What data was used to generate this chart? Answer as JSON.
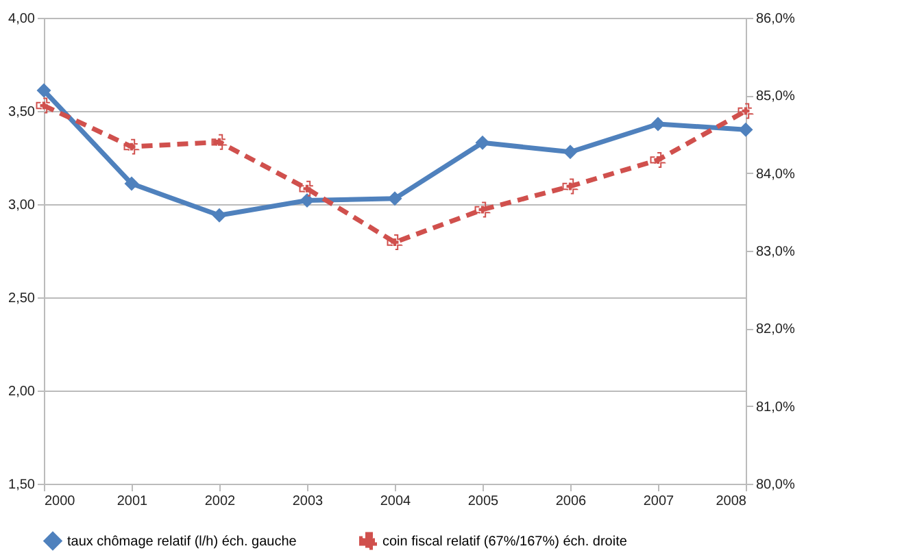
{
  "chart_data": {
    "type": "line",
    "x": [
      2000,
      2001,
      2002,
      2003,
      2004,
      2005,
      2006,
      2007,
      2008
    ],
    "xlim": [
      2000,
      2008
    ],
    "xticks": [
      2000,
      2001,
      2002,
      2003,
      2004,
      2005,
      2006,
      2007,
      2008
    ],
    "ylim": [
      1.5,
      4
    ],
    "yticks": [
      {
        "value": 1.5,
        "label": "1,50"
      },
      {
        "value": 2,
        "label": "2,00"
      },
      {
        "value": 2.5,
        "label": "2,50"
      },
      {
        "value": 3,
        "label": "3,00"
      },
      {
        "value": 3.5,
        "label": "3,50"
      },
      {
        "value": 4,
        "label": "4,00"
      }
    ],
    "y2lim": [
      80,
      86
    ],
    "y2ticks": [
      {
        "value": 80,
        "label": "80,0%"
      },
      {
        "value": 81,
        "label": "81,0%"
      },
      {
        "value": 82,
        "label": "82,0%"
      },
      {
        "value": 83,
        "label": "83,0%"
      },
      {
        "value": 84,
        "label": "84,0%"
      },
      {
        "value": 85,
        "label": "85,0%"
      },
      {
        "value": 86,
        "label": "86,0%"
      }
    ],
    "grid": "y",
    "legend": "bottom",
    "series": [
      {
        "name": "taux chômage relatif (l/h) éch. gauche",
        "color": "#4f81bd",
        "marker": "diamond",
        "line_style": "solid",
        "values": [
          3.61,
          3.11,
          2.94,
          3.02,
          3.03,
          3.33,
          3.28,
          3.43,
          3.4
        ]
      },
      {
        "name": "coin fiscal relatif (67%/167%)  éch. droite",
        "color": "#d0504d",
        "marker": "cross",
        "line_style": "dashed",
        "axis": "y2",
        "values": [
          84.87,
          84.34,
          84.4,
          83.8,
          83.11,
          83.53,
          83.83,
          84.17,
          84.8
        ]
      }
    ]
  }
}
